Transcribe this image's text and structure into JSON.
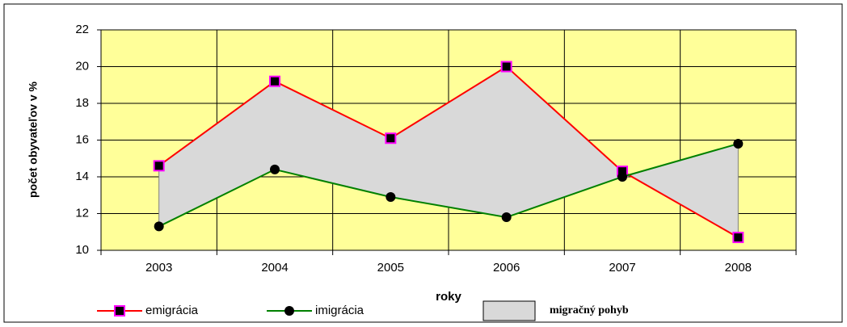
{
  "chart_data": {
    "type": "line",
    "categories": [
      "2003",
      "2004",
      "2005",
      "2006",
      "2007",
      "2008"
    ],
    "series": [
      {
        "name": "emigrácia",
        "color": "#ff0000",
        "marker": "square",
        "values": [
          14.6,
          19.2,
          16.1,
          20.0,
          14.3,
          10.7
        ]
      },
      {
        "name": "imigrácia",
        "color": "#008000",
        "marker": "circle",
        "values": [
          11.3,
          14.4,
          12.9,
          11.8,
          14.0,
          15.8
        ]
      }
    ],
    "band": {
      "name": "migračný pohyb",
      "color": "#d9d9d9"
    },
    "xlabel": "roky",
    "ylabel": "počet obyvateľov v %",
    "ylim": [
      10,
      22
    ],
    "yticks": [
      10,
      12,
      14,
      16,
      18,
      20,
      22
    ],
    "grid": true,
    "legend": "bottom"
  }
}
